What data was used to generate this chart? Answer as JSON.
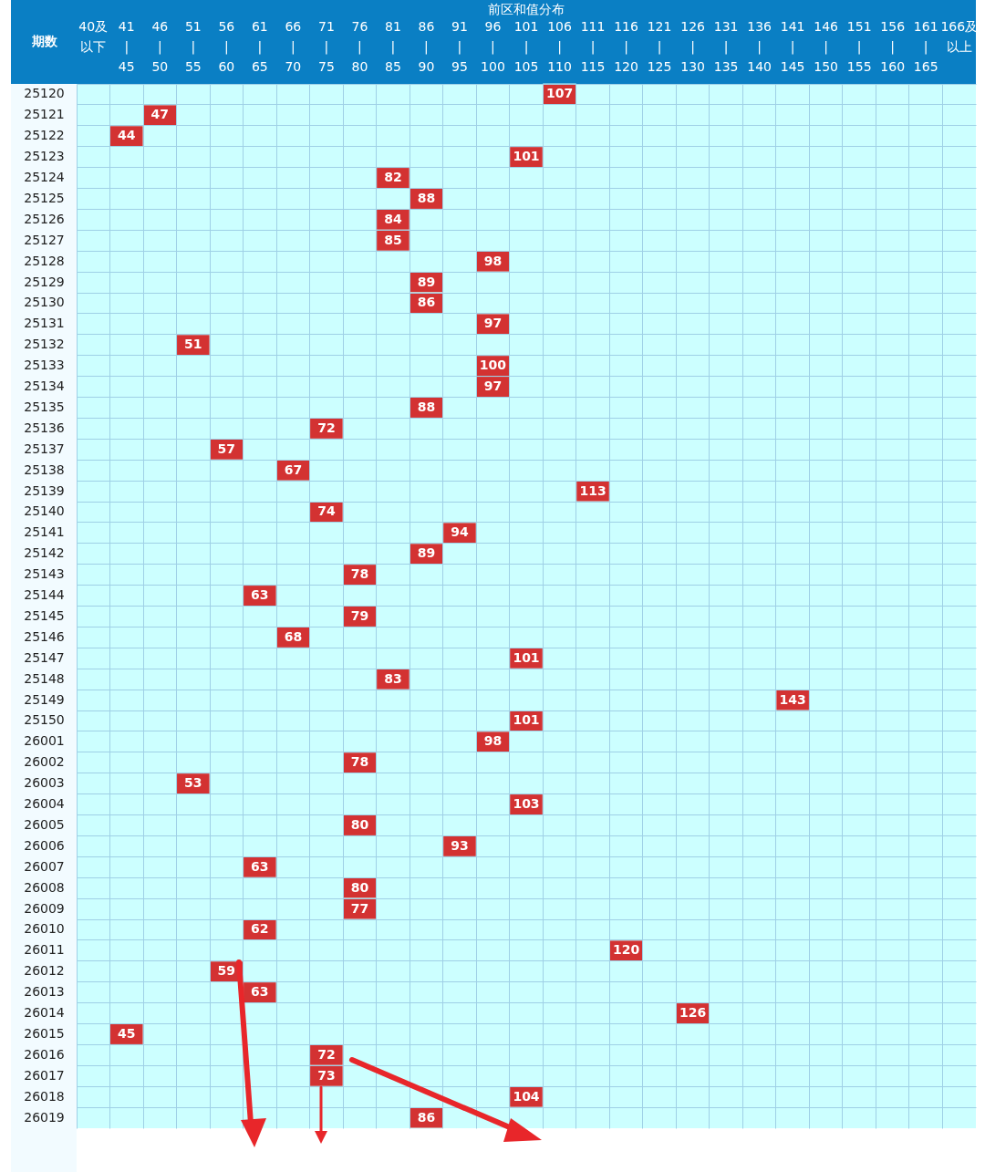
{
  "chart_data": {
    "type": "heatmap",
    "title": "前区和值分布",
    "ylabel": "期数",
    "color": "#d33232",
    "grid": true,
    "data_labels": true,
    "categories": [
      "40及以下",
      "41\n|\n45",
      "46\n|\n50",
      "51\n|\n55",
      "56\n|\n60",
      "61\n|\n65",
      "66\n|\n70",
      "71\n|\n75",
      "76\n|\n80",
      "81\n|\n85",
      "86\n|\n90",
      "91\n|\n95",
      "96\n|\n100",
      "101\n|\n105",
      "106\n|\n110",
      "111\n|\n115",
      "116\n|\n120",
      "121\n|\n125",
      "126\n|\n130",
      "131\n|\n135",
      "136\n|\n140",
      "141\n|\n145",
      "146\n|\n150",
      "151\n|\n155",
      "156\n|\n160",
      "161\n|\n165",
      "166及以上"
    ],
    "y_categories": [
      "25120",
      "25121",
      "25122",
      "25123",
      "25124",
      "25125",
      "25126",
      "25127",
      "25128",
      "25129",
      "25130",
      "25131",
      "25132",
      "25133",
      "25134",
      "25135",
      "25136",
      "25137",
      "25138",
      "25139",
      "25140",
      "25141",
      "25142",
      "25143",
      "25144",
      "25145",
      "25146",
      "25147",
      "25148",
      "25149",
      "25150",
      "26001",
      "26002",
      "26003",
      "26004",
      "26005",
      "26006",
      "26007",
      "26008",
      "26009",
      "26010",
      "26011",
      "26012",
      "26013",
      "26014",
      "26015",
      "26016",
      "26017",
      "26018",
      "26019"
    ],
    "cells": [
      [
        null,
        null,
        null,
        null,
        null,
        null,
        null,
        null,
        null,
        null,
        null,
        null,
        null,
        null,
        107,
        null,
        null,
        null,
        null,
        null,
        null,
        null,
        null,
        null,
        null,
        null,
        null
      ],
      [
        null,
        null,
        47,
        null,
        null,
        null,
        null,
        null,
        null,
        null,
        null,
        null,
        null,
        null,
        null,
        null,
        null,
        null,
        null,
        null,
        null,
        null,
        null,
        null,
        null,
        null,
        null
      ],
      [
        null,
        44,
        null,
        null,
        null,
        null,
        null,
        null,
        null,
        null,
        null,
        null,
        null,
        null,
        null,
        null,
        null,
        null,
        null,
        null,
        null,
        null,
        null,
        null,
        null,
        null,
        null
      ],
      [
        null,
        null,
        null,
        null,
        null,
        null,
        null,
        null,
        null,
        null,
        null,
        null,
        null,
        101,
        null,
        null,
        null,
        null,
        null,
        null,
        null,
        null,
        null,
        null,
        null,
        null,
        null
      ],
      [
        null,
        null,
        null,
        null,
        null,
        null,
        null,
        null,
        null,
        82,
        null,
        null,
        null,
        null,
        null,
        null,
        null,
        null,
        null,
        null,
        null,
        null,
        null,
        null,
        null,
        null,
        null
      ],
      [
        null,
        null,
        null,
        null,
        null,
        null,
        null,
        null,
        null,
        null,
        88,
        null,
        null,
        null,
        null,
        null,
        null,
        null,
        null,
        null,
        null,
        null,
        null,
        null,
        null,
        null,
        null
      ],
      [
        null,
        null,
        null,
        null,
        null,
        null,
        null,
        null,
        null,
        84,
        null,
        null,
        null,
        null,
        null,
        null,
        null,
        null,
        null,
        null,
        null,
        null,
        null,
        null,
        null,
        null,
        null
      ],
      [
        null,
        null,
        null,
        null,
        null,
        null,
        null,
        null,
        null,
        85,
        null,
        null,
        null,
        null,
        null,
        null,
        null,
        null,
        null,
        null,
        null,
        null,
        null,
        null,
        null,
        null,
        null
      ],
      [
        null,
        null,
        null,
        null,
        null,
        null,
        null,
        null,
        null,
        null,
        null,
        null,
        98,
        null,
        null,
        null,
        null,
        null,
        null,
        null,
        null,
        null,
        null,
        null,
        null,
        null,
        null
      ],
      [
        null,
        null,
        null,
        null,
        null,
        null,
        null,
        null,
        null,
        null,
        89,
        null,
        null,
        null,
        null,
        null,
        null,
        null,
        null,
        null,
        null,
        null,
        null,
        null,
        null,
        null,
        null
      ],
      [
        null,
        null,
        null,
        null,
        null,
        null,
        null,
        null,
        null,
        null,
        86,
        null,
        null,
        null,
        null,
        null,
        null,
        null,
        null,
        null,
        null,
        null,
        null,
        null,
        null,
        null,
        null
      ],
      [
        null,
        null,
        null,
        null,
        null,
        null,
        null,
        null,
        null,
        null,
        null,
        null,
        97,
        null,
        null,
        null,
        null,
        null,
        null,
        null,
        null,
        null,
        null,
        null,
        null,
        null,
        null
      ],
      [
        null,
        null,
        null,
        51,
        null,
        null,
        null,
        null,
        null,
        null,
        null,
        null,
        null,
        null,
        null,
        null,
        null,
        null,
        null,
        null,
        null,
        null,
        null,
        null,
        null,
        null,
        null
      ],
      [
        null,
        null,
        null,
        null,
        null,
        null,
        null,
        null,
        null,
        null,
        null,
        null,
        100,
        null,
        null,
        null,
        null,
        null,
        null,
        null,
        null,
        null,
        null,
        null,
        null,
        null,
        null
      ],
      [
        null,
        null,
        null,
        null,
        null,
        null,
        null,
        null,
        null,
        null,
        null,
        null,
        97,
        null,
        null,
        null,
        null,
        null,
        null,
        null,
        null,
        null,
        null,
        null,
        null,
        null,
        null
      ],
      [
        null,
        null,
        null,
        null,
        null,
        null,
        null,
        null,
        null,
        null,
        88,
        null,
        null,
        null,
        null,
        null,
        null,
        null,
        null,
        null,
        null,
        null,
        null,
        null,
        null,
        null,
        null
      ],
      [
        null,
        null,
        null,
        null,
        null,
        null,
        null,
        72,
        null,
        null,
        null,
        null,
        null,
        null,
        null,
        null,
        null,
        null,
        null,
        null,
        null,
        null,
        null,
        null,
        null,
        null,
        null
      ],
      [
        null,
        null,
        null,
        null,
        57,
        null,
        null,
        null,
        null,
        null,
        null,
        null,
        null,
        null,
        null,
        null,
        null,
        null,
        null,
        null,
        null,
        null,
        null,
        null,
        null,
        null,
        null
      ],
      [
        null,
        null,
        null,
        null,
        null,
        null,
        67,
        null,
        null,
        null,
        null,
        null,
        null,
        null,
        null,
        null,
        null,
        null,
        null,
        null,
        null,
        null,
        null,
        null,
        null,
        null,
        null
      ],
      [
        null,
        null,
        null,
        null,
        null,
        null,
        null,
        null,
        null,
        null,
        null,
        null,
        null,
        null,
        null,
        113,
        null,
        null,
        null,
        null,
        null,
        null,
        null,
        null,
        null,
        null,
        null
      ],
      [
        null,
        null,
        null,
        null,
        null,
        null,
        null,
        74,
        null,
        null,
        null,
        null,
        null,
        null,
        null,
        null,
        null,
        null,
        null,
        null,
        null,
        null,
        null,
        null,
        null,
        null,
        null
      ],
      [
        null,
        null,
        null,
        null,
        null,
        null,
        null,
        null,
        null,
        null,
        null,
        94,
        null,
        null,
        null,
        null,
        null,
        null,
        null,
        null,
        null,
        null,
        null,
        null,
        null,
        null,
        null
      ],
      [
        null,
        null,
        null,
        null,
        null,
        null,
        null,
        null,
        null,
        null,
        89,
        null,
        null,
        null,
        null,
        null,
        null,
        null,
        null,
        null,
        null,
        null,
        null,
        null,
        null,
        null,
        null
      ],
      [
        null,
        null,
        null,
        null,
        null,
        null,
        null,
        null,
        78,
        null,
        null,
        null,
        null,
        null,
        null,
        null,
        null,
        null,
        null,
        null,
        null,
        null,
        null,
        null,
        null,
        null,
        null
      ],
      [
        null,
        null,
        null,
        null,
        null,
        63,
        null,
        null,
        null,
        null,
        null,
        null,
        null,
        null,
        null,
        null,
        null,
        null,
        null,
        null,
        null,
        null,
        null,
        null,
        null,
        null,
        null
      ],
      [
        null,
        null,
        null,
        null,
        null,
        null,
        null,
        null,
        79,
        null,
        null,
        null,
        null,
        null,
        null,
        null,
        null,
        null,
        null,
        null,
        null,
        null,
        null,
        null,
        null,
        null,
        null
      ],
      [
        null,
        null,
        null,
        null,
        null,
        null,
        68,
        null,
        null,
        null,
        null,
        null,
        null,
        null,
        null,
        null,
        null,
        null,
        null,
        null,
        null,
        null,
        null,
        null,
        null,
        null,
        null
      ],
      [
        null,
        null,
        null,
        null,
        null,
        null,
        null,
        null,
        null,
        null,
        null,
        null,
        null,
        101,
        null,
        null,
        null,
        null,
        null,
        null,
        null,
        null,
        null,
        null,
        null,
        null,
        null
      ],
      [
        null,
        null,
        null,
        null,
        null,
        null,
        null,
        null,
        null,
        83,
        null,
        null,
        null,
        null,
        null,
        null,
        null,
        null,
        null,
        null,
        null,
        null,
        null,
        null,
        null,
        null,
        null
      ],
      [
        null,
        null,
        null,
        null,
        null,
        null,
        null,
        null,
        null,
        null,
        null,
        null,
        null,
        null,
        null,
        null,
        null,
        null,
        null,
        null,
        null,
        143,
        null,
        null,
        null,
        null,
        null
      ],
      [
        null,
        null,
        null,
        null,
        null,
        null,
        null,
        null,
        null,
        null,
        null,
        null,
        null,
        101,
        null,
        null,
        null,
        null,
        null,
        null,
        null,
        null,
        null,
        null,
        null,
        null,
        null
      ],
      [
        null,
        null,
        null,
        null,
        null,
        null,
        null,
        null,
        null,
        null,
        null,
        null,
        98,
        null,
        null,
        null,
        null,
        null,
        null,
        null,
        null,
        null,
        null,
        null,
        null,
        null,
        null
      ],
      [
        null,
        null,
        null,
        null,
        null,
        null,
        null,
        null,
        78,
        null,
        null,
        null,
        null,
        null,
        null,
        null,
        null,
        null,
        null,
        null,
        null,
        null,
        null,
        null,
        null,
        null,
        null
      ],
      [
        null,
        null,
        null,
        53,
        null,
        null,
        null,
        null,
        null,
        null,
        null,
        null,
        null,
        null,
        null,
        null,
        null,
        null,
        null,
        null,
        null,
        null,
        null,
        null,
        null,
        null,
        null
      ],
      [
        null,
        null,
        null,
        null,
        null,
        null,
        null,
        null,
        null,
        null,
        null,
        null,
        null,
        103,
        null,
        null,
        null,
        null,
        null,
        null,
        null,
        null,
        null,
        null,
        null,
        null,
        null
      ],
      [
        null,
        null,
        null,
        null,
        null,
        null,
        null,
        null,
        80,
        null,
        null,
        null,
        null,
        null,
        null,
        null,
        null,
        null,
        null,
        null,
        null,
        null,
        null,
        null,
        null,
        null,
        null
      ],
      [
        null,
        null,
        null,
        null,
        null,
        null,
        null,
        null,
        null,
        null,
        null,
        93,
        null,
        null,
        null,
        null,
        null,
        null,
        null,
        null,
        null,
        null,
        null,
        null,
        null,
        null,
        null
      ],
      [
        null,
        null,
        null,
        null,
        null,
        63,
        null,
        null,
        null,
        null,
        null,
        null,
        null,
        null,
        null,
        null,
        null,
        null,
        null,
        null,
        null,
        null,
        null,
        null,
        null,
        null,
        null
      ],
      [
        null,
        null,
        null,
        null,
        null,
        null,
        null,
        null,
        80,
        null,
        null,
        null,
        null,
        null,
        null,
        null,
        null,
        null,
        null,
        null,
        null,
        null,
        null,
        null,
        null,
        null,
        null
      ],
      [
        null,
        null,
        null,
        null,
        null,
        null,
        null,
        null,
        77,
        null,
        null,
        null,
        null,
        null,
        null,
        null,
        null,
        null,
        null,
        null,
        null,
        null,
        null,
        null,
        null,
        null,
        null
      ],
      [
        null,
        null,
        null,
        null,
        null,
        62,
        null,
        null,
        null,
        null,
        null,
        null,
        null,
        null,
        null,
        null,
        null,
        null,
        null,
        null,
        null,
        null,
        null,
        null,
        null,
        null,
        null
      ],
      [
        null,
        null,
        null,
        null,
        null,
        null,
        null,
        null,
        null,
        null,
        null,
        null,
        null,
        null,
        null,
        null,
        120,
        null,
        null,
        null,
        null,
        null,
        null,
        null,
        null,
        null,
        null
      ],
      [
        null,
        null,
        null,
        null,
        59,
        null,
        null,
        null,
        null,
        null,
        null,
        null,
        null,
        null,
        null,
        null,
        null,
        null,
        null,
        null,
        null,
        null,
        null,
        null,
        null,
        null,
        null
      ],
      [
        null,
        null,
        null,
        null,
        null,
        63,
        null,
        null,
        null,
        null,
        null,
        null,
        null,
        null,
        null,
        null,
        null,
        null,
        null,
        null,
        null,
        null,
        null,
        null,
        null,
        null,
        null
      ],
      [
        null,
        null,
        null,
        null,
        null,
        null,
        null,
        null,
        null,
        null,
        null,
        null,
        null,
        null,
        null,
        null,
        null,
        null,
        126,
        null,
        null,
        null,
        null,
        null,
        null,
        null,
        null
      ],
      [
        null,
        45,
        null,
        null,
        null,
        null,
        null,
        null,
        null,
        null,
        null,
        null,
        null,
        null,
        null,
        null,
        null,
        null,
        null,
        null,
        null,
        null,
        null,
        null,
        null,
        null,
        null
      ],
      [
        null,
        null,
        null,
        null,
        null,
        null,
        null,
        72,
        null,
        null,
        null,
        null,
        null,
        null,
        null,
        null,
        null,
        null,
        null,
        null,
        null,
        null,
        null,
        null,
        null,
        null,
        null
      ],
      [
        null,
        null,
        null,
        null,
        null,
        null,
        null,
        73,
        null,
        null,
        null,
        null,
        null,
        null,
        null,
        null,
        null,
        null,
        null,
        null,
        null,
        null,
        null,
        null,
        null,
        null,
        null
      ],
      [
        null,
        null,
        null,
        null,
        null,
        null,
        null,
        null,
        null,
        null,
        null,
        null,
        null,
        104,
        null,
        null,
        null,
        null,
        null,
        null,
        null,
        null,
        null,
        null,
        null,
        null,
        null
      ],
      [
        null,
        null,
        null,
        null,
        null,
        null,
        null,
        null,
        null,
        null,
        86,
        null,
        null,
        null,
        null,
        null,
        null,
        null,
        null,
        null,
        null,
        null,
        null,
        null,
        null,
        null,
        null
      ]
    ]
  }
}
